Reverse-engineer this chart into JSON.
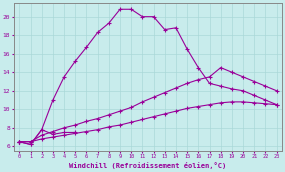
{
  "xlabel": "Windchill (Refroidissement éolien,°C)",
  "background_color": "#c8ecec",
  "line_color": "#990099",
  "grid_color": "#aad8d8",
  "x_ticks": [
    0,
    1,
    2,
    3,
    4,
    5,
    6,
    7,
    8,
    9,
    10,
    11,
    12,
    13,
    14,
    15,
    16,
    17,
    18,
    19,
    20,
    21,
    22,
    23
  ],
  "y_ticks": [
    6,
    8,
    10,
    12,
    14,
    16,
    18,
    20
  ],
  "ylim": [
    5.5,
    21.5
  ],
  "xlim": [
    -0.5,
    23.5
  ],
  "s1_x": [
    0,
    1,
    2,
    3,
    4,
    5
  ],
  "s1_y": [
    6.5,
    6.2,
    7.8,
    7.3,
    7.5,
    7.5
  ],
  "s2_x": [
    0,
    1,
    2,
    3,
    4,
    5,
    6,
    7,
    8,
    9,
    10,
    11,
    12,
    13,
    14,
    15,
    16,
    17,
    18,
    19,
    20,
    21,
    22,
    23
  ],
  "s2_y": [
    6.5,
    6.2,
    7.8,
    11.0,
    13.5,
    15.2,
    16.7,
    18.3,
    19.3,
    20.8,
    20.8,
    20.0,
    20.0,
    18.6,
    18.8,
    16.5,
    14.5,
    12.8,
    12.5,
    12.2,
    12.0,
    11.5,
    11.0,
    10.5
  ],
  "s3_x": [
    0,
    1,
    2,
    3,
    4,
    5,
    6,
    7,
    8,
    9,
    10,
    11,
    12,
    13,
    14,
    15,
    16,
    17,
    18,
    19,
    20,
    21,
    22,
    23
  ],
  "s3_y": [
    6.5,
    6.5,
    7.2,
    7.6,
    8.0,
    8.3,
    8.7,
    9.0,
    9.4,
    9.8,
    10.2,
    10.8,
    11.3,
    11.8,
    12.3,
    12.8,
    13.2,
    13.5,
    14.5,
    14.0,
    13.5,
    13.0,
    12.5,
    12.0
  ],
  "s4_x": [
    0,
    1,
    2,
    3,
    4,
    5,
    6,
    7,
    8,
    9,
    10,
    11,
    12,
    13,
    14,
    15,
    16,
    17,
    18,
    19,
    20,
    21,
    22,
    23
  ],
  "s4_y": [
    6.5,
    6.5,
    6.8,
    7.0,
    7.2,
    7.4,
    7.6,
    7.8,
    8.1,
    8.3,
    8.6,
    8.9,
    9.2,
    9.5,
    9.8,
    10.1,
    10.3,
    10.5,
    10.7,
    10.8,
    10.8,
    10.7,
    10.6,
    10.5
  ]
}
